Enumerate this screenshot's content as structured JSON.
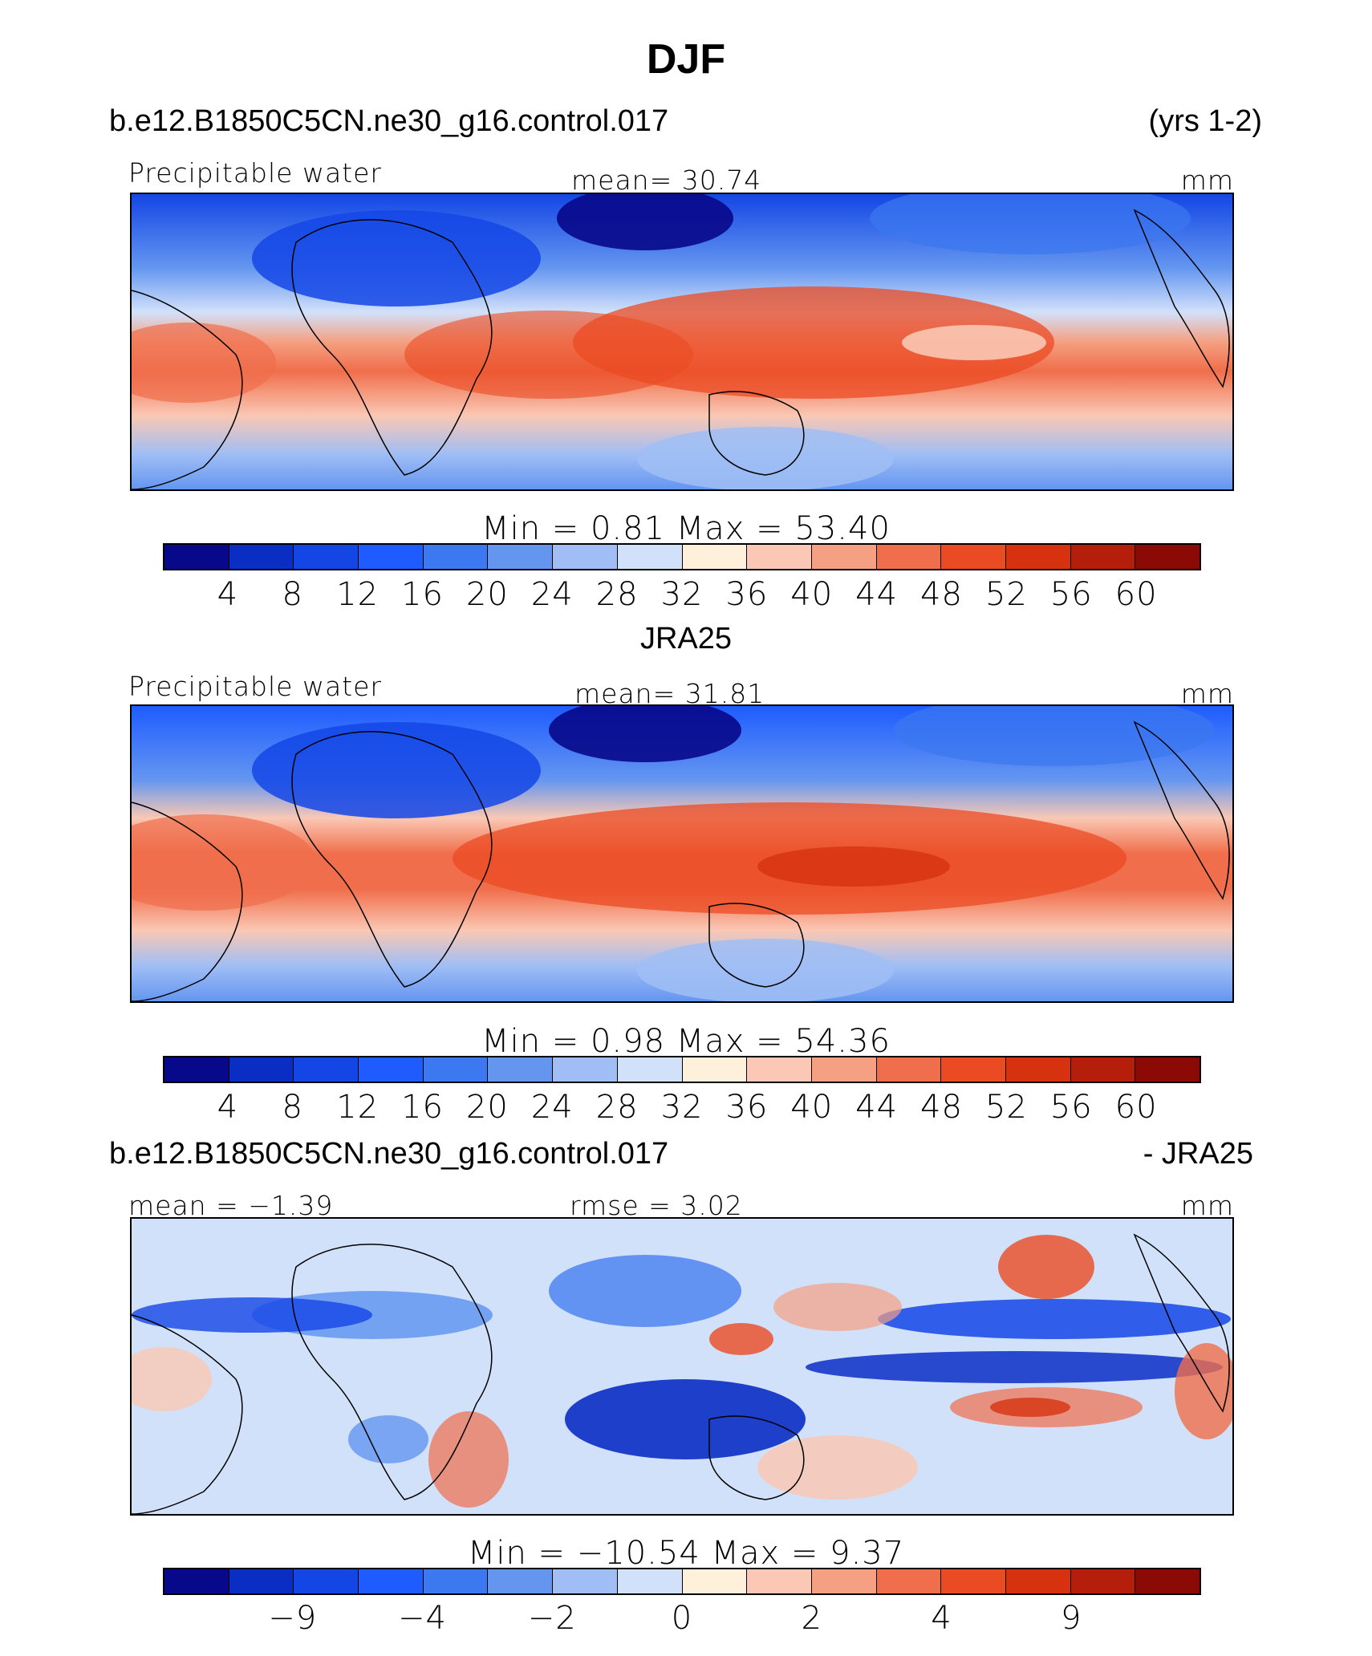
{
  "title": "DJF",
  "panels": [
    {
      "case_title": "b.e12.B1850C5CN.ne30_g16.control.017",
      "right_title": "(yrs 1-2)",
      "left_label": "Precipitable water",
      "center_label": "mean=  30.74",
      "units": "mm",
      "minmax": "Min =    0.81  Max =   53.40",
      "kind": "abs"
    },
    {
      "case_title": "JRA25",
      "left_label": "Precipitable water",
      "center_label": "mean=  31.81",
      "units": "mm",
      "minmax": "Min =    0.98  Max =   54.36",
      "kind": "abs"
    },
    {
      "case_title": "b.e12.B1850C5CN.ne30_g16.control.017",
      "right_title": "- JRA25",
      "left_label": "mean =  −1.39",
      "center_label": "rmse =    3.02",
      "units": "mm",
      "minmax": "Min = −10.54  Max =    9.37",
      "kind": "diff"
    }
  ],
  "colorbar": {
    "colors": [
      "#08088a",
      "#0a2dc4",
      "#1446e6",
      "#1e5cff",
      "#3c78f0",
      "#6496f0",
      "#a0bef5",
      "#d2e1fa",
      "#fff0dc",
      "#fac8b4",
      "#f5a082",
      "#f06e4b",
      "#eb4b23",
      "#d7320f",
      "#b41e0a",
      "#8c0a05"
    ],
    "abs_ticks": [
      "4",
      "8",
      "12",
      "16",
      "20",
      "24",
      "28",
      "32",
      "36",
      "40",
      "44",
      "48",
      "52",
      "56",
      "60"
    ],
    "diff_ticks": [
      "−9",
      "−4",
      "−2",
      "0",
      "2",
      "4",
      "9"
    ]
  }
}
